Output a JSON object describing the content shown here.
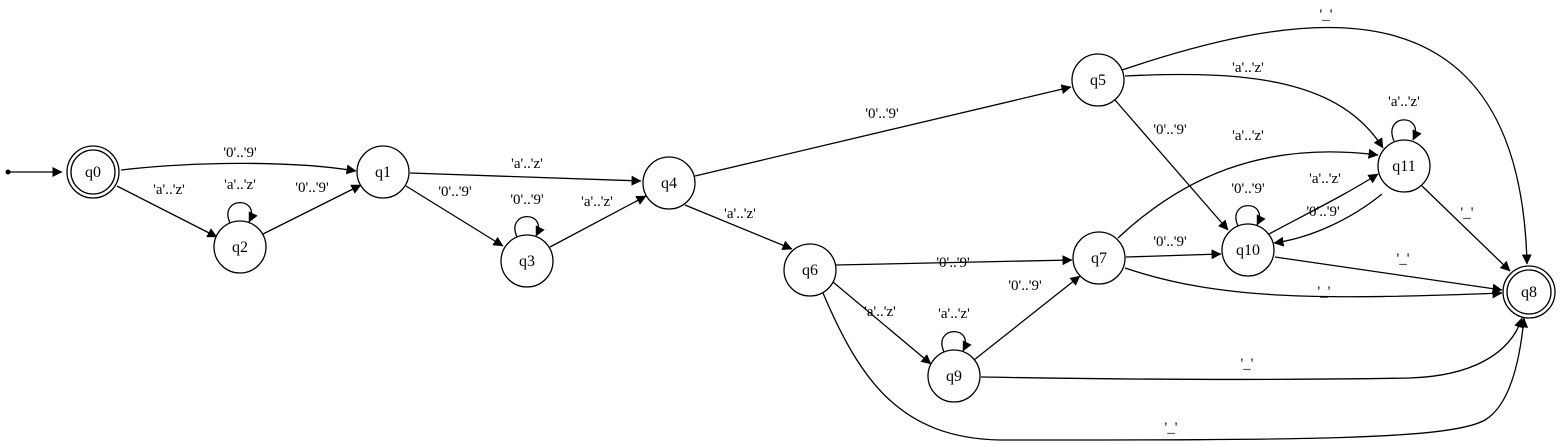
{
  "states": [
    {
      "id": "q0",
      "label": "q0",
      "accepting": true
    },
    {
      "id": "q1",
      "label": "q1",
      "accepting": false
    },
    {
      "id": "q2",
      "label": "q2",
      "accepting": false
    },
    {
      "id": "q3",
      "label": "q3",
      "accepting": false
    },
    {
      "id": "q4",
      "label": "q4",
      "accepting": false
    },
    {
      "id": "q5",
      "label": "q5",
      "accepting": false
    },
    {
      "id": "q6",
      "label": "q6",
      "accepting": false
    },
    {
      "id": "q7",
      "label": "q7",
      "accepting": false
    },
    {
      "id": "q8",
      "label": "q8",
      "accepting": true
    },
    {
      "id": "q9",
      "label": "q9",
      "accepting": false
    },
    {
      "id": "q10",
      "label": "q10",
      "accepting": false
    },
    {
      "id": "q11",
      "label": "q11",
      "accepting": false
    }
  ],
  "start_state": "q0",
  "transitions": [
    {
      "from": "q0",
      "to": "q1",
      "label": "'0'..'9'"
    },
    {
      "from": "q0",
      "to": "q2",
      "label": "'a'..'z'"
    },
    {
      "from": "q2",
      "to": "q2",
      "label": "'a'..'z'"
    },
    {
      "from": "q2",
      "to": "q1",
      "label": "'0'..'9'"
    },
    {
      "from": "q1",
      "to": "q4",
      "label": "'a'..'z'"
    },
    {
      "from": "q1",
      "to": "q3",
      "label": "'0'..'9'"
    },
    {
      "from": "q3",
      "to": "q3",
      "label": "'0'..'9'"
    },
    {
      "from": "q3",
      "to": "q4",
      "label": "'a'..'z'"
    },
    {
      "from": "q4",
      "to": "q5",
      "label": "'0'..'9'"
    },
    {
      "from": "q4",
      "to": "q6",
      "label": "'a'..'z'"
    },
    {
      "from": "q5",
      "to": "q8",
      "label": "'_'"
    },
    {
      "from": "q5",
      "to": "q11",
      "label": "'a'..'z'"
    },
    {
      "from": "q5",
      "to": "q10",
      "label": "'0'..'9'"
    },
    {
      "from": "q11",
      "to": "q11",
      "label": "'a'..'z'"
    },
    {
      "from": "q7",
      "to": "q11",
      "label": "'a'..'z'"
    },
    {
      "from": "q10",
      "to": "q11",
      "label": "'a'..'z'"
    },
    {
      "from": "q10",
      "to": "q10",
      "label": "'0'..'9'"
    },
    {
      "from": "q11",
      "to": "q10",
      "label": "'0'..'9'"
    },
    {
      "from": "q11",
      "to": "q8",
      "label": "'_'"
    },
    {
      "from": "q6",
      "to": "q7",
      "label": "'0'..'9'"
    },
    {
      "from": "q7",
      "to": "q10",
      "label": "'0'..'9'"
    },
    {
      "from": "q10",
      "to": "q8",
      "label": "'_'"
    },
    {
      "from": "q7",
      "to": "q8",
      "label": "'_'"
    },
    {
      "from": "q6",
      "to": "q9",
      "label": "'a'..'z'"
    },
    {
      "from": "q9",
      "to": "q9",
      "label": "'a'..'z'"
    },
    {
      "from": "q9",
      "to": "q7",
      "label": "'0'..'9'"
    },
    {
      "from": "q9",
      "to": "q8",
      "label": "'_'"
    },
    {
      "from": "q6",
      "to": "q8",
      "label": "'_'"
    }
  ]
}
